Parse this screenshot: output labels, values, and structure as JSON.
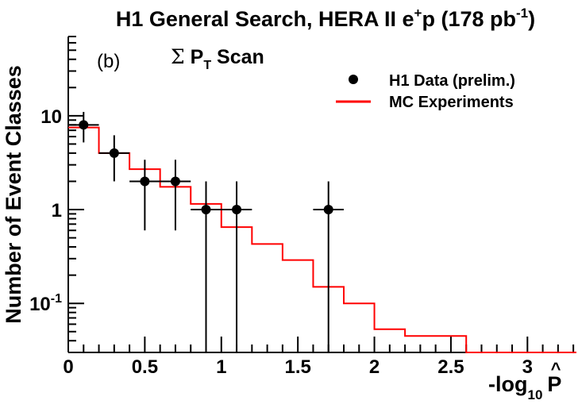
{
  "chart_data": {
    "type": "scatter",
    "title": {
      "pre": "H1 General Search, HERA II e",
      "sup1": "+",
      "mid": "p (178 pb",
      "sup2": "-1",
      "post": ")"
    },
    "panel_label": "(b)",
    "subtitle": {
      "sigma": "Σ",
      "p": "P",
      "sub": "T",
      "rest": " Scan"
    },
    "ylabel": "Number of Event Classes",
    "xlabel": {
      "main": "-log",
      "sub": "10",
      "p": "P",
      "hat": "^"
    },
    "xlim": [
      0,
      3.32
    ],
    "ylim": [
      0.03,
      70
    ],
    "yscale": "log",
    "x_ticks": [
      {
        "value": 0,
        "label": "0"
      },
      {
        "value": 0.5,
        "label": "0.5"
      },
      {
        "value": 1,
        "label": "1"
      },
      {
        "value": 1.5,
        "label": "1.5"
      },
      {
        "value": 2,
        "label": "2"
      },
      {
        "value": 2.5,
        "label": "2.5"
      },
      {
        "value": 3,
        "label": "3"
      }
    ],
    "y_ticks": [
      {
        "value": 10,
        "label": "10"
      },
      {
        "value": 1,
        "label": "1"
      },
      {
        "value": 0.1,
        "label": "10",
        "sup": "-1"
      }
    ],
    "legend": {
      "placement": "top-right",
      "entries": [
        {
          "name": "H1 Data (prelim.)",
          "style": "marker"
        },
        {
          "name": "MC Experiments",
          "style": "line"
        }
      ]
    },
    "series": [
      {
        "name": "H1 Data (prelim.)",
        "type": "points",
        "color": "#000000",
        "points": [
          {
            "x": 0.1,
            "y": 8,
            "xerr": 0.1,
            "ylo": 5.2,
            "yhi": 11
          },
          {
            "x": 0.3,
            "y": 4,
            "xerr": 0.1,
            "ylo": 2.0,
            "yhi": 6.2
          },
          {
            "x": 0.5,
            "y": 2,
            "xerr": 0.1,
            "ylo": 0.6,
            "yhi": 3.4
          },
          {
            "x": 0.7,
            "y": 2,
            "xerr": 0.1,
            "ylo": 0.6,
            "yhi": 3.4
          },
          {
            "x": 0.9,
            "y": 1,
            "xerr": 0.1,
            "ylo": 0.03,
            "yhi": 2.0
          },
          {
            "x": 1.1,
            "y": 1,
            "xerr": 0.1,
            "ylo": 0.03,
            "yhi": 2.0
          },
          {
            "x": 1.7,
            "y": 1,
            "xerr": 0.1,
            "ylo": 0.03,
            "yhi": 2.0
          }
        ]
      },
      {
        "name": "MC Experiments",
        "type": "step",
        "color": "#ff0000",
        "bins": [
          {
            "x0": 0.0,
            "x1": 0.2,
            "y": 7.5
          },
          {
            "x0": 0.2,
            "x1": 0.4,
            "y": 4.0
          },
          {
            "x0": 0.4,
            "x1": 0.6,
            "y": 2.7
          },
          {
            "x0": 0.6,
            "x1": 0.8,
            "y": 1.75
          },
          {
            "x0": 0.8,
            "x1": 1.0,
            "y": 1.15
          },
          {
            "x0": 1.0,
            "x1": 1.2,
            "y": 0.65
          },
          {
            "x0": 1.2,
            "x1": 1.4,
            "y": 0.43
          },
          {
            "x0": 1.4,
            "x1": 1.6,
            "y": 0.29
          },
          {
            "x0": 1.6,
            "x1": 1.8,
            "y": 0.15
          },
          {
            "x0": 1.8,
            "x1": 2.0,
            "y": 0.1
          },
          {
            "x0": 2.0,
            "x1": 2.2,
            "y": 0.053
          },
          {
            "x0": 2.2,
            "x1": 2.6,
            "y": 0.045
          },
          {
            "x0": 2.6,
            "x1": 3.32,
            "y": 0.03
          }
        ]
      }
    ],
    "grid": false
  }
}
